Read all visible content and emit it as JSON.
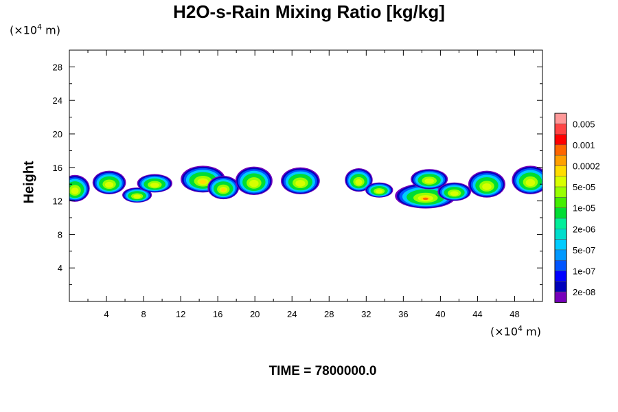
{
  "header": {
    "title": "H2O-s-Rain Mixing Ratio [kg/kg]",
    "x_unit": "(×10",
    "x_unit_exp": "4",
    "x_unit_tail": " m)",
    "y_unit": "(×10",
    "y_unit_exp": "4",
    "y_unit_tail": " m)"
  },
  "footer": {
    "time_label": "TIME = 7800000.0"
  },
  "chart_data": {
    "type": "heatmap",
    "title": "H2O-s-Rain Mixing Ratio [kg/kg]",
    "xlabel": "",
    "ylabel": "Height",
    "xlim": [
      0,
      51
    ],
    "ylim": [
      0,
      30
    ],
    "x_ticks": [
      4,
      8,
      12,
      16,
      20,
      24,
      28,
      32,
      36,
      40,
      44,
      48
    ],
    "y_ticks": [
      4,
      8,
      12,
      16,
      20,
      24,
      28
    ],
    "colorbar": {
      "labels": [
        "0.005",
        "0.001",
        "0.0002",
        "5e-05",
        "1e-05",
        "2e-06",
        "5e-07",
        "1e-07",
        "2e-08"
      ],
      "colors": [
        "#ff9999",
        "#ff4444",
        "#ff0000",
        "#ff6600",
        "#ffa000",
        "#ffdd00",
        "#d8ff00",
        "#99ff00",
        "#44ee00",
        "#00dd33",
        "#00ee99",
        "#00ddcc",
        "#00ccff",
        "#0099ff",
        "#0055ff",
        "#0000ff",
        "#0000bb",
        "#7700bb"
      ]
    },
    "cloud_cells": [
      {
        "x": 0.6,
        "y": 13.5,
        "rx": 1.6,
        "ry": 1.6,
        "peak": 3
      },
      {
        "x": 4.3,
        "y": 14.2,
        "rx": 1.8,
        "ry": 1.4,
        "peak": 3
      },
      {
        "x": 7.3,
        "y": 12.7,
        "rx": 1.6,
        "ry": 0.9,
        "peak": 3
      },
      {
        "x": 9.2,
        "y": 14.1,
        "rx": 1.9,
        "ry": 1.1,
        "peak": 3
      },
      {
        "x": 14.4,
        "y": 14.6,
        "rx": 2.4,
        "ry": 1.6,
        "peak": 4
      },
      {
        "x": 16.6,
        "y": 13.6,
        "rx": 1.7,
        "ry": 1.4,
        "peak": 4
      },
      {
        "x": 19.9,
        "y": 14.4,
        "rx": 2.0,
        "ry": 1.7,
        "peak": 3
      },
      {
        "x": 24.9,
        "y": 14.4,
        "rx": 2.1,
        "ry": 1.6,
        "peak": 3
      },
      {
        "x": 31.2,
        "y": 14.5,
        "rx": 1.5,
        "ry": 1.4,
        "peak": 3
      },
      {
        "x": 33.4,
        "y": 13.3,
        "rx": 1.5,
        "ry": 0.9,
        "peak": 3
      },
      {
        "x": 38.4,
        "y": 12.6,
        "rx": 3.3,
        "ry": 1.5,
        "peak": 6
      },
      {
        "x": 38.8,
        "y": 14.6,
        "rx": 2.0,
        "ry": 1.2,
        "peak": 3
      },
      {
        "x": 41.5,
        "y": 13.1,
        "rx": 1.8,
        "ry": 1.1,
        "peak": 3
      },
      {
        "x": 45.0,
        "y": 14.0,
        "rx": 2.0,
        "ry": 1.6,
        "peak": 3
      },
      {
        "x": 49.7,
        "y": 14.5,
        "rx": 2.0,
        "ry": 1.7,
        "peak": 3
      }
    ]
  }
}
